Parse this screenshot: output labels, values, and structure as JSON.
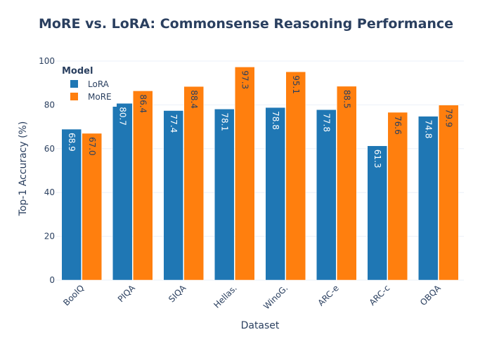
{
  "chart_data": {
    "type": "bar",
    "title": "MoRE vs. LoRA: Commonsense Reasoning Performance",
    "xlabel": "Dataset",
    "ylabel": "Top-1 Accuracy (%)",
    "ylim": [
      0,
      100
    ],
    "yticks": [
      "0",
      "20",
      "40",
      "60",
      "80",
      "100"
    ],
    "categories": [
      "BoolQ",
      "PIQA",
      "SIQA",
      "Hellas.",
      "WinoG.",
      "ARC-e",
      "ARC-c",
      "OBQA"
    ],
    "legend_title": "Model",
    "legend_position": "top-left",
    "grid": true,
    "series": [
      {
        "name": "LoRA",
        "color": "#1f77b4",
        "label_color": "#ffffff",
        "values": [
          68.9,
          80.7,
          77.4,
          78.1,
          78.8,
          77.8,
          61.3,
          74.8
        ],
        "labels": [
          "68.9",
          "80.7",
          "77.4",
          "78.1",
          "78.8",
          "77.8",
          "61.3",
          "74.8"
        ]
      },
      {
        "name": "MoRE",
        "color": "#ff7f0e",
        "label_color": "#2a3f5f",
        "values": [
          67.0,
          86.4,
          88.4,
          97.3,
          95.1,
          88.5,
          76.6,
          79.9
        ],
        "labels": [
          "67.0",
          "86.4",
          "88.4",
          "97.3",
          "95.1",
          "88.5",
          "76.6",
          "79.9"
        ]
      }
    ]
  }
}
